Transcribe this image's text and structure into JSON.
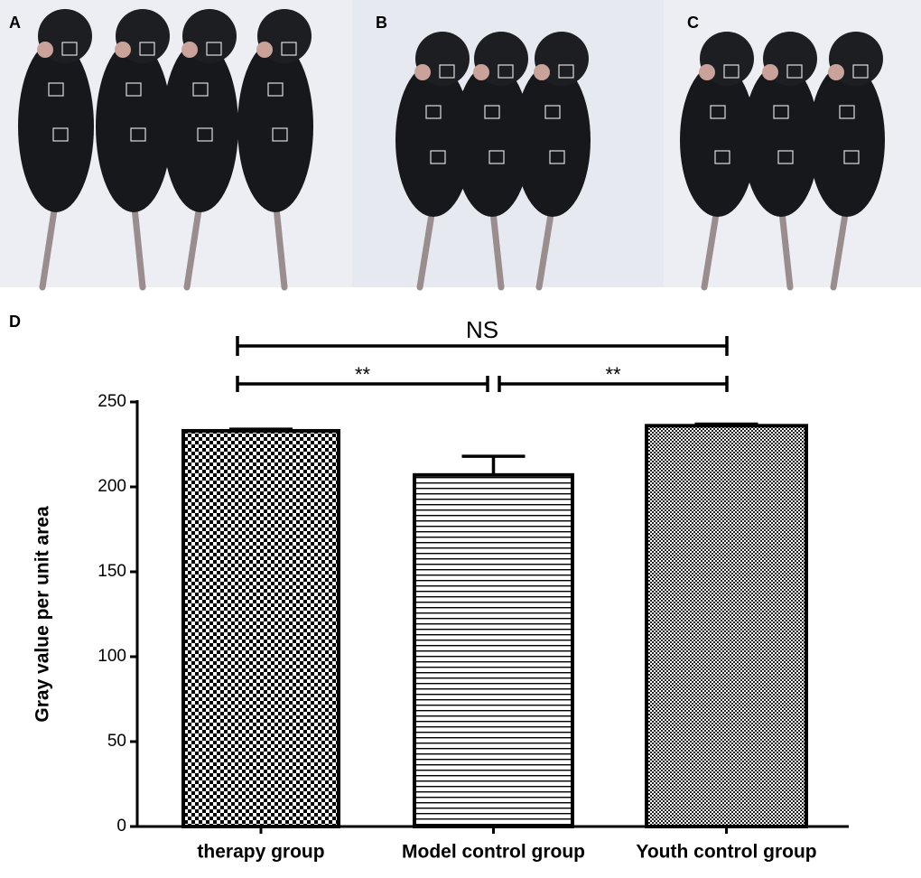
{
  "photo_panels": [
    "A",
    "B",
    "C"
  ],
  "chart_data": {
    "type": "bar",
    "panel_label": "D",
    "y_label": "Gray value per unit area",
    "categories": [
      "therapy group",
      "Model control group",
      "Youth control group"
    ],
    "values": [
      233,
      207,
      236
    ],
    "errors": [
      1,
      11,
      1
    ],
    "color": "#000000",
    "patterns": [
      "checker",
      "hlines",
      "dots"
    ],
    "ylim": [
      0,
      250
    ],
    "yticks": [
      0,
      50,
      100,
      150,
      200,
      250
    ],
    "annotations": [
      {
        "text": "NS"
      },
      {
        "text": "**"
      },
      {
        "text": "**"
      }
    ]
  }
}
